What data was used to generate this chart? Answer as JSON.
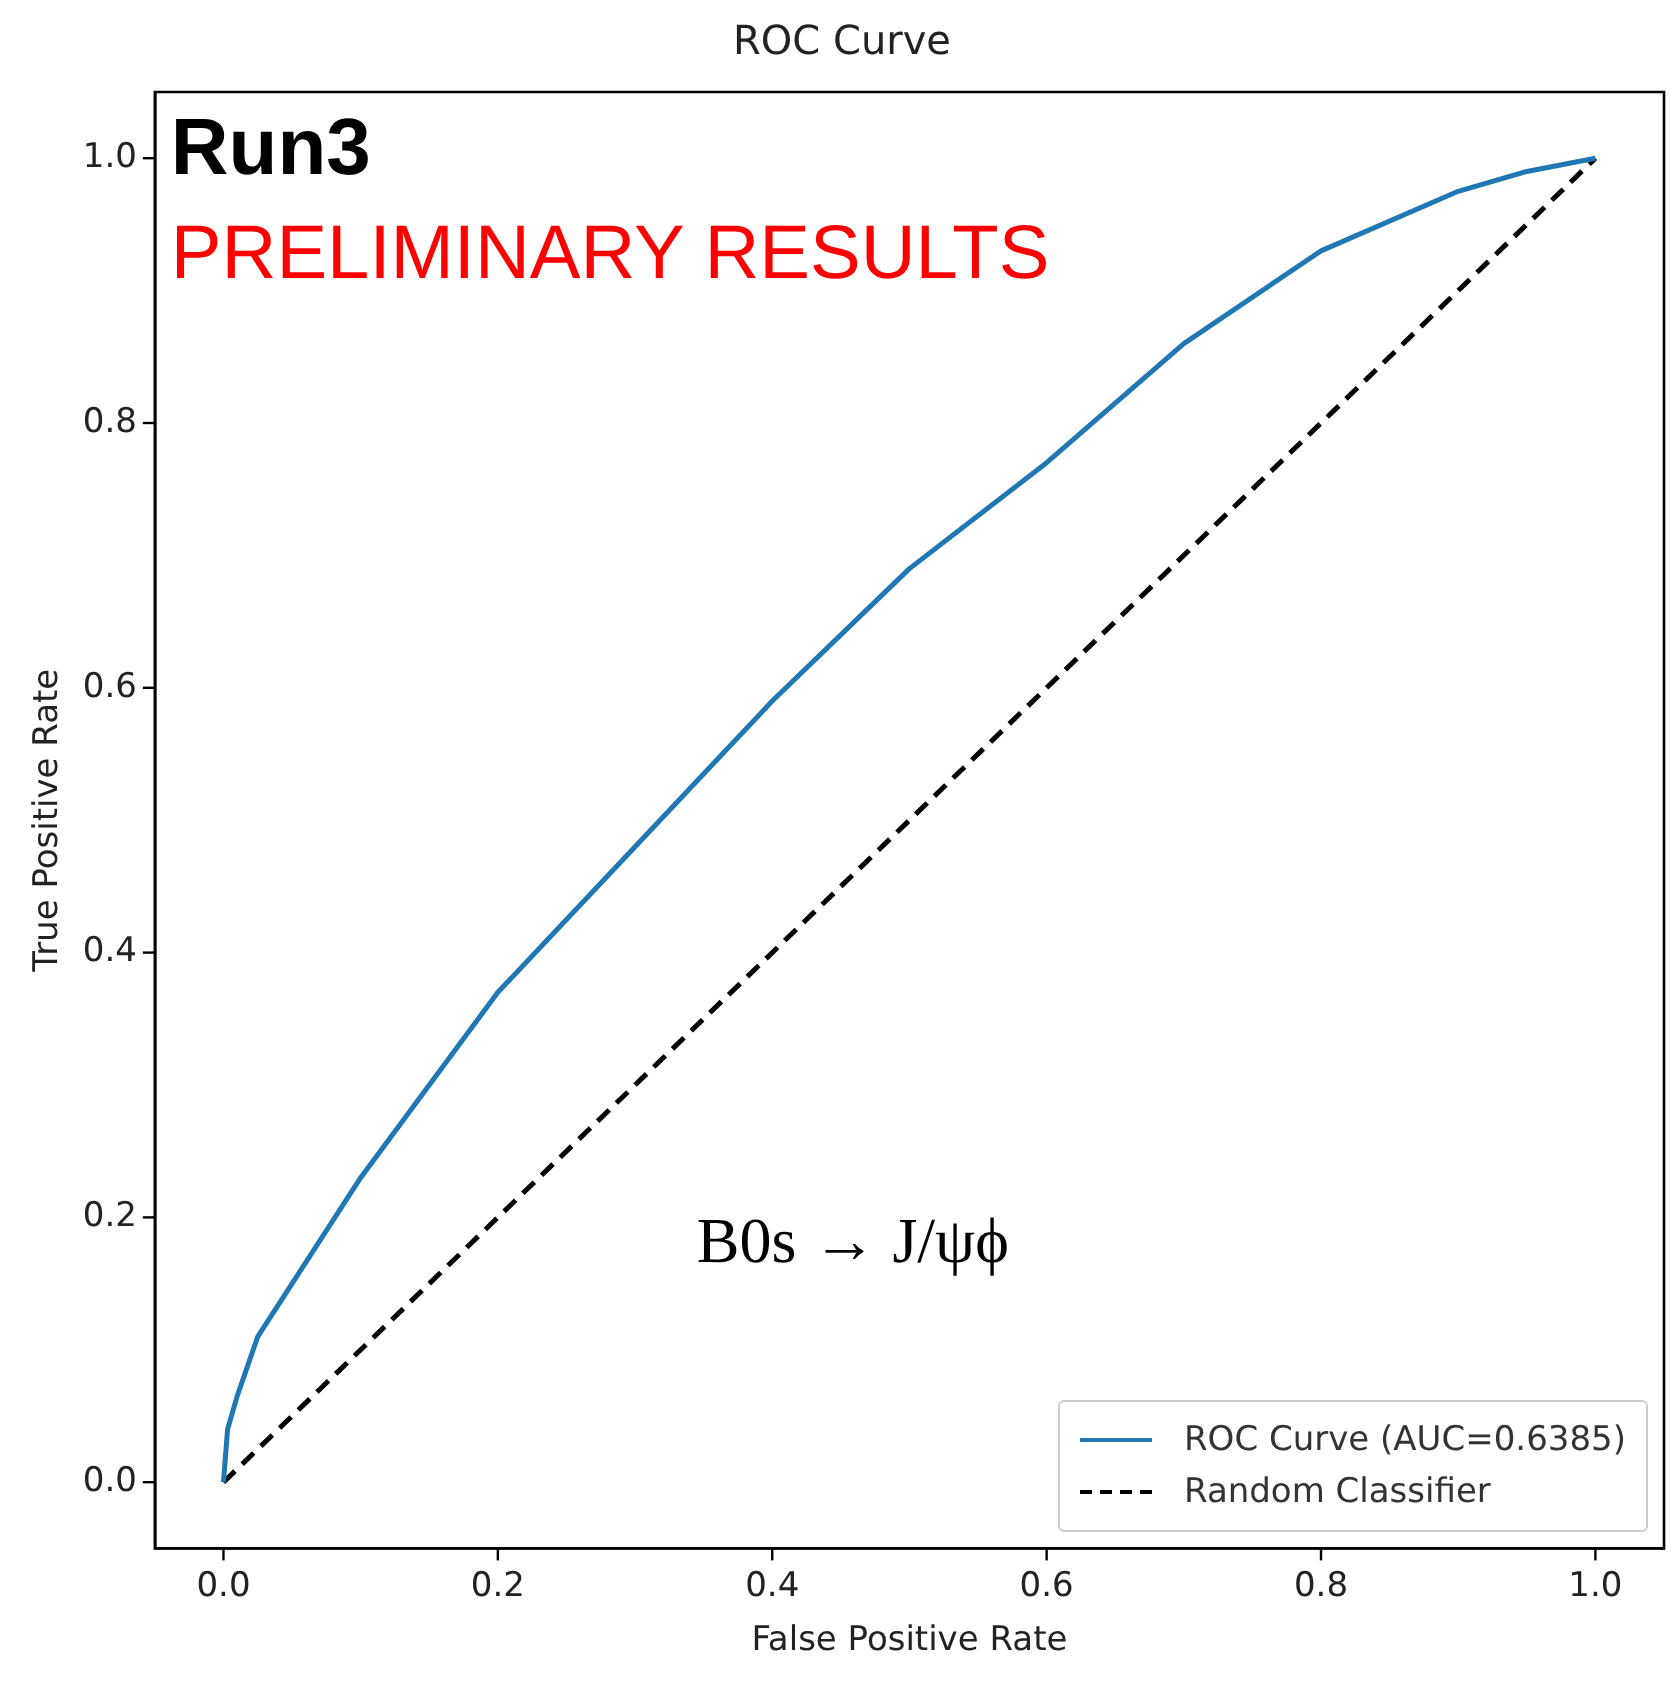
{
  "chart_data": {
    "type": "line",
    "title": "ROC Curve",
    "xlabel": "False Positive Rate",
    "ylabel": "True Positive Rate",
    "xlim": [
      -0.05,
      1.05
    ],
    "ylim": [
      -0.05,
      1.05
    ],
    "xticks": [
      {
        "value": 0,
        "label": "0.0"
      },
      0.2,
      0.4,
      0.6,
      0.8,
      {
        "value": 1,
        "label": "1.0"
      }
    ],
    "yticks": [
      {
        "value": 0,
        "label": "0.0"
      },
      0.2,
      0.4,
      0.6,
      0.8,
      {
        "value": 1,
        "label": "1.0"
      }
    ],
    "grid": false,
    "legend": "bottom right",
    "marker": "none",
    "series": [
      {
        "name": "ROC Curve (AUC=0.6385)",
        "color": "#1f77b4",
        "line_style": "solid",
        "x": [
          0,
          0.003,
          0.01,
          0.025,
          0.05,
          0.1,
          0.15,
          0.2,
          0.3,
          0.4,
          0.5,
          0.6,
          0.7,
          0.8,
          0.9,
          0.95,
          1
        ],
        "values": [
          0,
          0.04,
          0.065,
          0.11,
          0.15,
          0.23,
          0.3,
          0.37,
          0.48,
          0.59,
          0.69,
          0.77,
          0.86,
          0.93,
          0.975,
          0.99,
          1
        ]
      },
      {
        "name": "Random Classifier",
        "color": "#000000",
        "line_style": "dashed",
        "x": [
          0,
          1
        ],
        "values": [
          0,
          1
        ]
      }
    ],
    "annotations": [
      "Run3",
      "PRELIMINARY RESULTS",
      "B0s → J/ψϕ"
    ]
  }
}
